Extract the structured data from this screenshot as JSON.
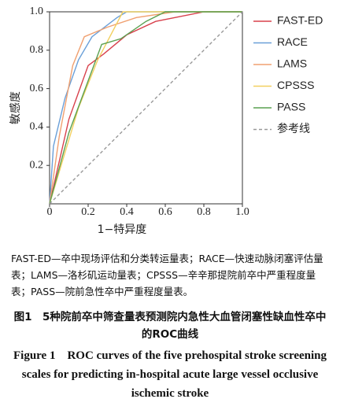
{
  "chart_data": {
    "type": "line",
    "xlabel": "1−特异度",
    "ylabel": "敏感度",
    "xlim": [
      0,
      1
    ],
    "ylim": [
      0,
      1
    ],
    "xticks": [
      0,
      0.2,
      0.4,
      0.6,
      0.8,
      {
        "value": 1,
        "label": "1.0"
      }
    ],
    "yticks": [
      0.2,
      0.4,
      0.6,
      0.8,
      {
        "value": 1,
        "label": "1.0"
      }
    ],
    "series": [
      {
        "name": "FAST-ED",
        "color": "#d8404c",
        "x": [
          0,
          0.1,
          0.2,
          0.28,
          0.4,
          0.55,
          0.8,
          1
        ],
        "values": [
          0,
          0.44,
          0.72,
          0.78,
          0.88,
          0.95,
          1,
          1
        ]
      },
      {
        "name": "RACE",
        "color": "#6a9fd8",
        "x": [
          0,
          0.02,
          0.08,
          0.15,
          0.22,
          0.35,
          0.4,
          1
        ],
        "values": [
          0,
          0.3,
          0.55,
          0.75,
          0.87,
          0.97,
          1,
          1
        ]
      },
      {
        "name": "LAMS",
        "color": "#f0a070",
        "x": [
          0,
          0.05,
          0.12,
          0.18,
          0.3,
          0.45,
          0.65,
          1
        ],
        "values": [
          0,
          0.35,
          0.72,
          0.87,
          0.92,
          0.97,
          1,
          1
        ]
      },
      {
        "name": "CPSSS",
        "color": "#f2d060",
        "x": [
          0,
          0.15,
          0.25,
          0.38,
          1
        ],
        "values": [
          0,
          0.5,
          0.75,
          1,
          1
        ]
      },
      {
        "name": "PASS",
        "color": "#5aa050",
        "x": [
          0,
          0.1,
          0.27,
          0.37,
          0.5,
          0.6,
          1
        ],
        "values": [
          0,
          0.37,
          0.83,
          0.86,
          0.95,
          1,
          1
        ]
      },
      {
        "name": "参考线",
        "color": "#999999",
        "style": "dashed",
        "x": [
          0,
          1
        ],
        "values": [
          0,
          1
        ]
      }
    ]
  },
  "caption": {
    "notes": "FAST-ED—卒中现场评估和分类转运量表；RACE—快速动脉闭塞评估量表；LAMS—洛杉矶运动量表；CPSSS—辛辛那提院前卒中严重程度量表；PASS—院前急性卒中严重程度量表。",
    "title_cn": "图1　5种院前卒中筛查量表预测院内急性大血管闭塞性缺血性卒中的ROC曲线",
    "title_en": "Figure 1　ROC curves of the five prehospital stroke screening scales for predicting in-hospital acute large vessel occlusive ischemic stroke"
  }
}
